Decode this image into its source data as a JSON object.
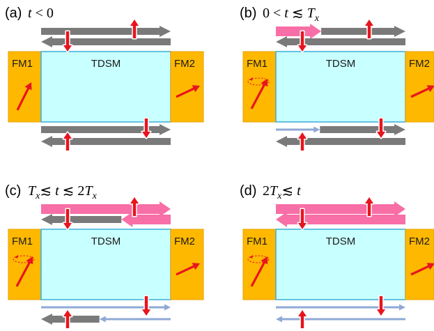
{
  "panels": [
    {
      "id": "a",
      "label": "(a)",
      "condition": [
        {
          "t": "t",
          "it": true
        },
        {
          "t": " < 0",
          "it": false
        }
      ],
      "fm_left": "FM1",
      "fm_right": "FM2",
      "center": "TDSM",
      "precession": false,
      "top": [
        {
          "dir": "right",
          "kind": "gray",
          "from": 0.0,
          "to": 1.0
        },
        {
          "dir": "left",
          "kind": "gray",
          "from": 0.0,
          "to": 1.0
        }
      ],
      "bottom": [
        {
          "dir": "right",
          "kind": "gray",
          "from": 0.0,
          "to": 1.0
        },
        {
          "dir": "left",
          "kind": "gray",
          "from": 0.0,
          "to": 1.0
        }
      ]
    },
    {
      "id": "b",
      "label": "(b)",
      "condition": [
        {
          "t": "0 < ",
          "it": false
        },
        {
          "t": "t",
          "it": true
        },
        {
          "t": " ≲ ",
          "it": false
        },
        {
          "t": "T",
          "it": true
        },
        {
          "t": "x",
          "it": true,
          "sub": true
        }
      ],
      "fm_left": "FM1",
      "fm_right": "FM2",
      "center": "TDSM",
      "precession": true,
      "top": [
        {
          "dir": "right",
          "kind": "pink",
          "from": 0.0,
          "to": 0.35
        },
        {
          "dir": "right",
          "kind": "gray",
          "from": 0.35,
          "to": 1.0
        },
        {
          "dir": "left",
          "kind": "gray",
          "from": 0.0,
          "to": 1.0
        }
      ],
      "bottom": [
        {
          "dir": "right",
          "kind": "thin",
          "from": 0.0,
          "to": 0.34
        },
        {
          "dir": "right",
          "kind": "gray",
          "from": 0.34,
          "to": 1.0
        },
        {
          "dir": "left",
          "kind": "gray",
          "from": 0.0,
          "to": 1.0
        }
      ]
    },
    {
      "id": "c",
      "label": "(c)",
      "condition": [
        {
          "t": "T",
          "it": true
        },
        {
          "t": "x",
          "it": true,
          "sub": true
        },
        {
          "t": "≲ ",
          "it": false
        },
        {
          "t": "t",
          "it": true
        },
        {
          "t": " ≲ 2",
          "it": false
        },
        {
          "t": "T",
          "it": true
        },
        {
          "t": "x",
          "it": true,
          "sub": true
        }
      ],
      "fm_left": "FM1",
      "fm_right": "FM2",
      "center": "TDSM",
      "precession": true,
      "top": [
        {
          "dir": "right",
          "kind": "pink",
          "from": 0.0,
          "to": 1.0
        },
        {
          "dir": "left",
          "kind": "gray",
          "from": 0.0,
          "to": 0.62
        },
        {
          "dir": "left",
          "kind": "pink",
          "from": 0.62,
          "to": 1.0
        }
      ],
      "bottom": [
        {
          "dir": "right",
          "kind": "thin",
          "from": 0.0,
          "to": 1.0
        },
        {
          "dir": "left",
          "kind": "gray",
          "from": 0.0,
          "to": 0.45
        },
        {
          "dir": "left",
          "kind": "thin",
          "from": 0.45,
          "to": 1.0
        }
      ]
    },
    {
      "id": "d",
      "label": "(d)",
      "condition": [
        {
          "t": "2",
          "it": false
        },
        {
          "t": "T",
          "it": true
        },
        {
          "t": "x",
          "it": true,
          "sub": true
        },
        {
          "t": "≲ ",
          "it": false
        },
        {
          "t": "t",
          "it": true
        }
      ],
      "fm_left": "FM1",
      "fm_right": "FM2",
      "center": "TDSM",
      "precession": true,
      "top": [
        {
          "dir": "right",
          "kind": "pink",
          "from": 0.0,
          "to": 1.0
        },
        {
          "dir": "left",
          "kind": "pink",
          "from": 0.0,
          "to": 1.0
        }
      ],
      "bottom": [
        {
          "dir": "right",
          "kind": "thin",
          "from": 0.0,
          "to": 1.0
        },
        {
          "dir": "left",
          "kind": "thin",
          "from": 0.0,
          "to": 1.0
        }
      ]
    }
  ],
  "colors": {
    "fm": "#FFB800",
    "fm_border": "#E8A000",
    "tdsm": "#C8FFFF",
    "tdsm_border": "#3AAED8",
    "gray": "#7A7A7A",
    "pink": "#F76FA6",
    "thin": "#8FA9D6",
    "spin": "#E8141E"
  }
}
